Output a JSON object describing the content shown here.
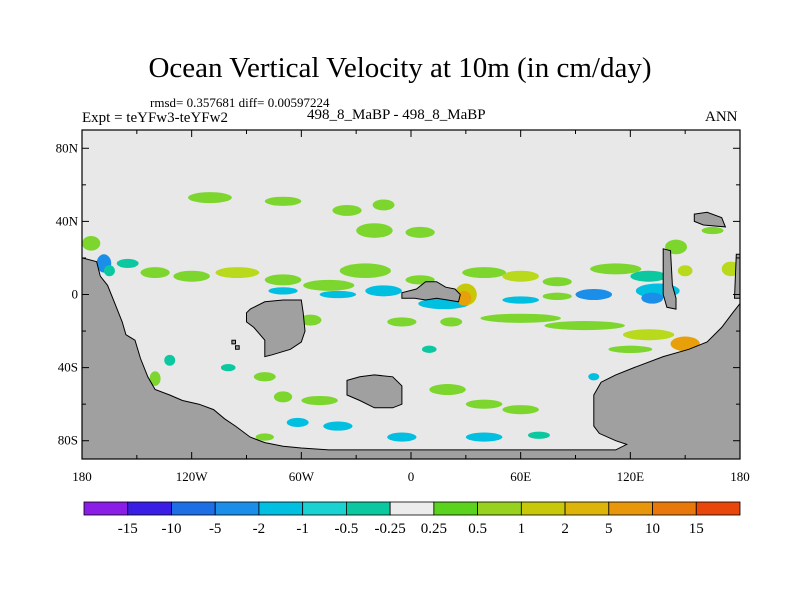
{
  "title": "Ocean Vertical Velocity at 10m (in cm/day)",
  "stats": "rmsd= 0.357681 diff= 0.00597224",
  "expt": "Expt = teYFw3-teYFw2",
  "center_label": "498_8_MaBP - 498_8_MaBP",
  "season": "ANN",
  "colors": {
    "ocean_background": "#e8e8e8",
    "land": "#a0a0a0",
    "coast": "#000000"
  },
  "map": {
    "projection": "cylindrical-equidistant",
    "lon_range": [
      -180,
      180
    ],
    "lat_range": [
      -90,
      90
    ],
    "lat_ticks": [
      {
        "value": 80,
        "label": "80N"
      },
      {
        "value": 40,
        "label": "40N"
      },
      {
        "value": 0,
        "label": "0"
      },
      {
        "value": -40,
        "label": "40S"
      },
      {
        "value": -80,
        "label": "80S"
      }
    ],
    "lon_ticks": [
      {
        "value": -180,
        "label": "180"
      },
      {
        "value": -120,
        "label": "120W"
      },
      {
        "value": -60,
        "label": "60W"
      },
      {
        "value": 0,
        "label": "0"
      },
      {
        "value": 60,
        "label": "60E"
      },
      {
        "value": 120,
        "label": "120E"
      },
      {
        "value": 180,
        "label": "180"
      }
    ],
    "land": [
      {
        "name": "americas",
        "points": [
          [
            -180,
            20
          ],
          [
            -172,
            18
          ],
          [
            -170,
            10
          ],
          [
            -166,
            5
          ],
          [
            -162,
            -5
          ],
          [
            -158,
            -15
          ],
          [
            -156,
            -22
          ],
          [
            -151,
            -25
          ],
          [
            -148,
            -35
          ],
          [
            -144,
            -45
          ],
          [
            -140,
            -52
          ],
          [
            -132,
            -55
          ],
          [
            -125,
            -58
          ],
          [
            -116,
            -60
          ],
          [
            -108,
            -63
          ],
          [
            -102,
            -68
          ],
          [
            -96,
            -72
          ],
          [
            -88,
            -78
          ],
          [
            -80,
            -81
          ],
          [
            -70,
            -83
          ],
          [
            -60,
            -84
          ],
          [
            -45,
            -85
          ],
          [
            -20,
            -85
          ],
          [
            0,
            -85
          ],
          [
            20,
            -85
          ],
          [
            60,
            -85
          ],
          [
            100,
            -85
          ],
          [
            112,
            -85
          ],
          [
            118,
            -82
          ],
          [
            112,
            -80
          ],
          [
            103,
            -76
          ],
          [
            100,
            -72
          ],
          [
            100,
            -55
          ],
          [
            104,
            -48
          ],
          [
            112,
            -44
          ],
          [
            122,
            -40
          ],
          [
            138,
            -34
          ],
          [
            152,
            -30
          ],
          [
            162,
            -26
          ],
          [
            170,
            -18
          ],
          [
            176,
            -10
          ],
          [
            180,
            -5
          ],
          [
            180,
            -90
          ],
          [
            -180,
            -90
          ]
        ]
      },
      {
        "name": "africa-block",
        "points": [
          [
            -88,
            -8
          ],
          [
            -80,
            -4
          ],
          [
            -70,
            -3
          ],
          [
            -60,
            -3
          ],
          [
            -59,
            -10
          ],
          [
            -58,
            -20
          ],
          [
            -60,
            -26
          ],
          [
            -66,
            -30
          ],
          [
            -76,
            -33
          ],
          [
            -80,
            -34
          ],
          [
            -80,
            -25
          ],
          [
            -86,
            -18
          ],
          [
            -90,
            -15
          ],
          [
            -90,
            -10
          ]
        ]
      },
      {
        "name": "southern-island",
        "points": [
          [
            -35,
            -47
          ],
          [
            -28,
            -45
          ],
          [
            -20,
            -44
          ],
          [
            -10,
            -45
          ],
          [
            -5,
            -50
          ],
          [
            -5,
            -60
          ],
          [
            -10,
            -62
          ],
          [
            -20,
            -62
          ],
          [
            -28,
            -58
          ],
          [
            -35,
            -55
          ]
        ]
      },
      {
        "name": "equatorial-island",
        "points": [
          [
            -5,
            1
          ],
          [
            3,
            3
          ],
          [
            8,
            7
          ],
          [
            14,
            7
          ],
          [
            19,
            4
          ],
          [
            24,
            3
          ],
          [
            27,
            0
          ],
          [
            26,
            -4
          ],
          [
            20,
            -3
          ],
          [
            14,
            -2
          ],
          [
            8,
            -3
          ],
          [
            2,
            -2
          ],
          [
            -5,
            -2
          ]
        ]
      },
      {
        "name": "east-strip",
        "points": [
          [
            138,
            25
          ],
          [
            142,
            24
          ],
          [
            143,
            5
          ],
          [
            145,
            -2
          ],
          [
            145,
            -8
          ],
          [
            140,
            -7
          ],
          [
            138,
            0
          ]
        ]
      },
      {
        "name": "ne-island",
        "points": [
          [
            155,
            44
          ],
          [
            162,
            45
          ],
          [
            170,
            42
          ],
          [
            172,
            37
          ],
          [
            160,
            38
          ],
          [
            155,
            40
          ]
        ]
      },
      {
        "name": "east-edge",
        "points": [
          [
            178,
            22
          ],
          [
            180,
            22
          ],
          [
            180,
            -2
          ],
          [
            177,
            -2
          ]
        ]
      },
      {
        "name": "tiny-islet-1",
        "points": [
          [
            -98,
            -25
          ],
          [
            -96,
            -25
          ],
          [
            -96,
            -27
          ],
          [
            -98,
            -27
          ]
        ]
      },
      {
        "name": "tiny-islet-2",
        "points": [
          [
            -96,
            -28
          ],
          [
            -94,
            -28
          ],
          [
            -94,
            -30
          ],
          [
            -96,
            -30
          ]
        ]
      }
    ],
    "anomalies": [
      {
        "lon": -110,
        "lat": 53,
        "rx": 12,
        "ry": 3,
        "color": "#7cd62e"
      },
      {
        "lon": -70,
        "lat": 51,
        "rx": 10,
        "ry": 2.5,
        "color": "#7cd62e"
      },
      {
        "lon": -35,
        "lat": 46,
        "rx": 8,
        "ry": 3,
        "color": "#7cd62e"
      },
      {
        "lon": -15,
        "lat": 49,
        "rx": 6,
        "ry": 3,
        "color": "#7cd62e"
      },
      {
        "lon": -20,
        "lat": 35,
        "rx": 10,
        "ry": 4,
        "color": "#7cd62e"
      },
      {
        "lon": 5,
        "lat": 34,
        "rx": 8,
        "ry": 3,
        "color": "#7cd62e"
      },
      {
        "lon": -175,
        "lat": 28,
        "rx": 5,
        "ry": 4,
        "color": "#7cd62e"
      },
      {
        "lon": -168,
        "lat": 17,
        "rx": 4,
        "ry": 5,
        "color": "#1a8ee8"
      },
      {
        "lon": -165,
        "lat": 13,
        "rx": 3,
        "ry": 3,
        "color": "#0cc8a0"
      },
      {
        "lon": -155,
        "lat": 17,
        "rx": 6,
        "ry": 2.5,
        "color": "#0cc8a0"
      },
      {
        "lon": -140,
        "lat": 12,
        "rx": 8,
        "ry": 3,
        "color": "#7cd62e"
      },
      {
        "lon": -120,
        "lat": 10,
        "rx": 10,
        "ry": 3,
        "color": "#7cd62e"
      },
      {
        "lon": -95,
        "lat": 12,
        "rx": 12,
        "ry": 3,
        "color": "#b8d91c"
      },
      {
        "lon": -70,
        "lat": 8,
        "rx": 10,
        "ry": 3,
        "color": "#7cd62e"
      },
      {
        "lon": -70,
        "lat": 2,
        "rx": 8,
        "ry": 2,
        "color": "#00bfe0"
      },
      {
        "lon": -45,
        "lat": 5,
        "rx": 14,
        "ry": 3,
        "color": "#7cd62e"
      },
      {
        "lon": -25,
        "lat": 13,
        "rx": 14,
        "ry": 4,
        "color": "#7cd62e"
      },
      {
        "lon": -40,
        "lat": 0,
        "rx": 10,
        "ry": 2,
        "color": "#00bfe0"
      },
      {
        "lon": -15,
        "lat": 2,
        "rx": 10,
        "ry": 3,
        "color": "#00bfe0"
      },
      {
        "lon": 18,
        "lat": -5,
        "rx": 14,
        "ry": 3,
        "color": "#00bfe0"
      },
      {
        "lon": 30,
        "lat": 0,
        "rx": 6,
        "ry": 6,
        "color": "#c8c80a"
      },
      {
        "lon": 29,
        "lat": -2,
        "rx": 4,
        "ry": 4,
        "color": "#e8a00a"
      },
      {
        "lon": 5,
        "lat": 8,
        "rx": 8,
        "ry": 2.5,
        "color": "#7cd62e"
      },
      {
        "lon": 40,
        "lat": 12,
        "rx": 12,
        "ry": 3,
        "color": "#7cd62e"
      },
      {
        "lon": 60,
        "lat": 10,
        "rx": 10,
        "ry": 3,
        "color": "#b8d91c"
      },
      {
        "lon": 80,
        "lat": 7,
        "rx": 8,
        "ry": 2.5,
        "color": "#7cd62e"
      },
      {
        "lon": 60,
        "lat": -3,
        "rx": 10,
        "ry": 2,
        "color": "#00bfe0"
      },
      {
        "lon": 80,
        "lat": -1,
        "rx": 8,
        "ry": 2,
        "color": "#7cd62e"
      },
      {
        "lon": 100,
        "lat": 0,
        "rx": 10,
        "ry": 3,
        "color": "#1a8ee8"
      },
      {
        "lon": 112,
        "lat": 14,
        "rx": 14,
        "ry": 3,
        "color": "#7cd62e"
      },
      {
        "lon": 130,
        "lat": 10,
        "rx": 10,
        "ry": 3,
        "color": "#0cc8a0"
      },
      {
        "lon": 135,
        "lat": 2,
        "rx": 12,
        "ry": 4,
        "color": "#00bfe0"
      },
      {
        "lon": 132,
        "lat": -2,
        "rx": 6,
        "ry": 3,
        "color": "#1a8ee8"
      },
      {
        "lon": 145,
        "lat": 26,
        "rx": 6,
        "ry": 4,
        "color": "#7cd62e"
      },
      {
        "lon": 150,
        "lat": 13,
        "rx": 4,
        "ry": 3,
        "color": "#b8d91c"
      },
      {
        "lon": 165,
        "lat": 35,
        "rx": 6,
        "ry": 2,
        "color": "#7cd62e"
      },
      {
        "lon": 175,
        "lat": 14,
        "rx": 5,
        "ry": 4,
        "color": "#b8d91c"
      },
      {
        "lon": 60,
        "lat": -13,
        "rx": 22,
        "ry": 2.5,
        "color": "#7cd62e"
      },
      {
        "lon": 95,
        "lat": -17,
        "rx": 22,
        "ry": 2.5,
        "color": "#7cd62e"
      },
      {
        "lon": 130,
        "lat": -22,
        "rx": 14,
        "ry": 3,
        "color": "#b8d91c"
      },
      {
        "lon": 150,
        "lat": -27,
        "rx": 8,
        "ry": 4,
        "color": "#e8a00a"
      },
      {
        "lon": 120,
        "lat": -30,
        "rx": 12,
        "ry": 2,
        "color": "#7cd62e"
      },
      {
        "lon": -55,
        "lat": -14,
        "rx": 6,
        "ry": 3,
        "color": "#7cd62e"
      },
      {
        "lon": -5,
        "lat": -15,
        "rx": 8,
        "ry": 2.5,
        "color": "#7cd62e"
      },
      {
        "lon": 22,
        "lat": -15,
        "rx": 6,
        "ry": 2.5,
        "color": "#7cd62e"
      },
      {
        "lon": -80,
        "lat": -45,
        "rx": 6,
        "ry": 2.5,
        "color": "#7cd62e"
      },
      {
        "lon": -70,
        "lat": -56,
        "rx": 5,
        "ry": 3,
        "color": "#7cd62e"
      },
      {
        "lon": -50,
        "lat": -58,
        "rx": 10,
        "ry": 2.5,
        "color": "#7cd62e"
      },
      {
        "lon": 20,
        "lat": -52,
        "rx": 10,
        "ry": 3,
        "color": "#7cd62e"
      },
      {
        "lon": 40,
        "lat": -60,
        "rx": 10,
        "ry": 2.5,
        "color": "#7cd62e"
      },
      {
        "lon": 60,
        "lat": -63,
        "rx": 10,
        "ry": 2.5,
        "color": "#7cd62e"
      },
      {
        "lon": -62,
        "lat": -70,
        "rx": 6,
        "ry": 2.5,
        "color": "#00bfe0"
      },
      {
        "lon": -40,
        "lat": -72,
        "rx": 8,
        "ry": 2.5,
        "color": "#00bfe0"
      },
      {
        "lon": -5,
        "lat": -78,
        "rx": 8,
        "ry": 2.5,
        "color": "#00bfe0"
      },
      {
        "lon": 40,
        "lat": -78,
        "rx": 10,
        "ry": 2.5,
        "color": "#00bfe0"
      },
      {
        "lon": 70,
        "lat": -77,
        "rx": 6,
        "ry": 2,
        "color": "#0cc8a0"
      },
      {
        "lon": -80,
        "lat": -78,
        "rx": 5,
        "ry": 2,
        "color": "#7cd62e"
      },
      {
        "lon": -140,
        "lat": -46,
        "rx": 3,
        "ry": 4,
        "color": "#7cd62e"
      },
      {
        "lon": -132,
        "lat": -36,
        "rx": 3,
        "ry": 3,
        "color": "#0cc8a0"
      },
      {
        "lon": 100,
        "lat": -45,
        "rx": 3,
        "ry": 2,
        "color": "#00bfe0"
      },
      {
        "lon": -100,
        "lat": -40,
        "rx": 4,
        "ry": 2,
        "color": "#0cc8a0"
      },
      {
        "lon": 10,
        "lat": -30,
        "rx": 4,
        "ry": 2,
        "color": "#0cc8a0"
      }
    ]
  },
  "colorbar": {
    "colors": [
      "#8a1ee6",
      "#3a1ee6",
      "#1e6ee6",
      "#1a8ee8",
      "#00bfe0",
      "#1ad2d2",
      "#0cc8a0",
      "#ececec",
      "#5ad21e",
      "#96d21e",
      "#c8c80a",
      "#dcb40a",
      "#e8960a",
      "#e8780a",
      "#e8460a"
    ],
    "labels": [
      "-15",
      "-10",
      "-5",
      "-2",
      "-1",
      "-0.5",
      "-0.25",
      "0.25",
      "0.5",
      "1",
      "2",
      "5",
      "10",
      "15"
    ]
  }
}
